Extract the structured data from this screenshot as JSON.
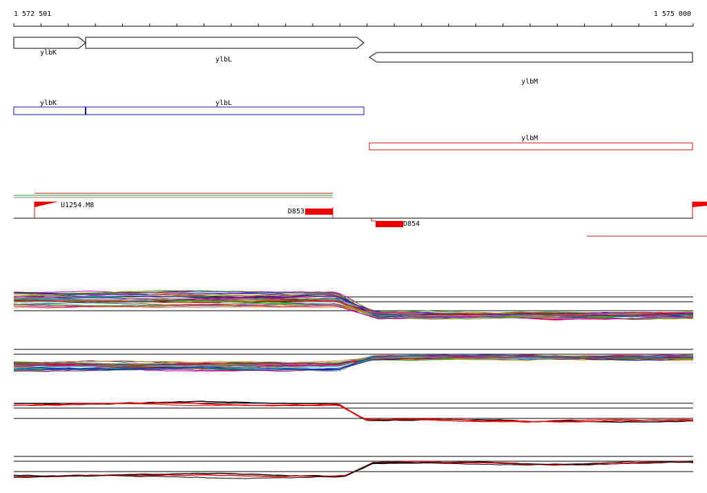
{
  "ruler": {
    "start": "1 572 501",
    "end": "1 575 000"
  },
  "genes": [
    {
      "label": "ylbK"
    },
    {
      "label": "ylbL"
    },
    {
      "label": "ylbM"
    }
  ],
  "transcripts": [
    {
      "label": "ylbK"
    },
    {
      "label": "ylbL"
    },
    {
      "label": "ylbM"
    }
  ],
  "features": [
    {
      "label": "U1254.M8"
    },
    {
      "label": "D853"
    },
    {
      "label": "D854"
    }
  ]
}
